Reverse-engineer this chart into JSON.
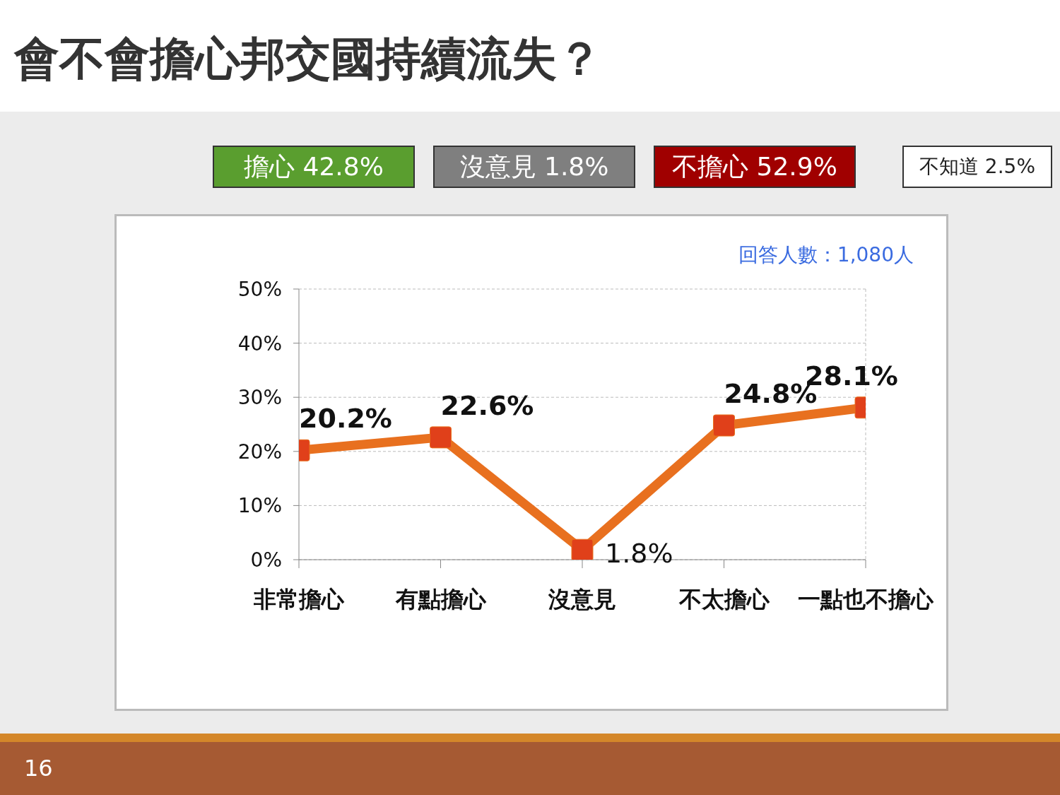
{
  "chart_data": {
    "type": "line",
    "title": "會不會擔心邦交國持續流失？",
    "categories": [
      "非常擔心",
      "有點擔心",
      "沒意見",
      "不太擔心",
      "一點也不擔心"
    ],
    "series": [
      {
        "color": "#e8701f",
        "values": [
          20.2,
          22.6,
          1.8,
          24.8,
          28.1
        ],
        "value_labels": [
          "20.2%",
          "22.6%",
          "1.8%",
          "24.8%",
          "28.1%"
        ]
      }
    ],
    "ylim": [
      0,
      50
    ],
    "yticks": [
      {
        "value": 0,
        "label": "0%"
      },
      {
        "value": 10,
        "label": "10%"
      },
      {
        "value": 20,
        "label": "20%"
      },
      {
        "value": 30,
        "label": "30%"
      },
      {
        "value": 40,
        "label": "40%"
      },
      {
        "value": 50,
        "label": "50%"
      }
    ],
    "grid": "y",
    "marker": "square",
    "annotations": [
      "擔心 42.8%",
      "沒意見 1.8%",
      "不擔心 52.9%",
      "不知道 2.5%",
      "回答人數：1,080人",
      "16"
    ]
  }
}
